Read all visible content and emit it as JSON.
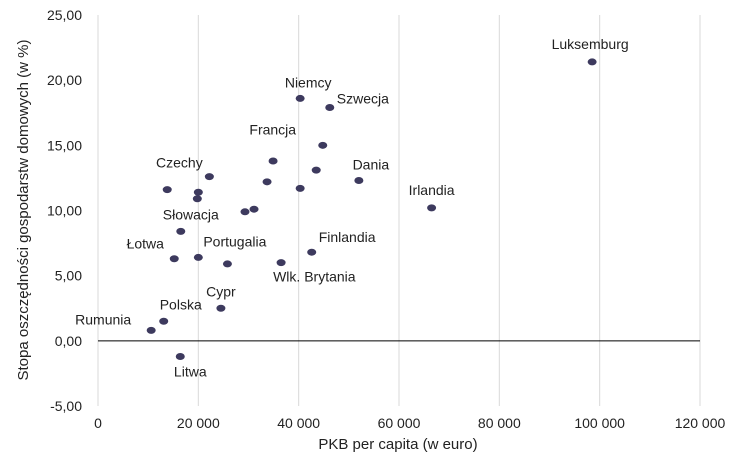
{
  "chart_data": {
    "type": "scatter",
    "title": "",
    "xlabel": "PKB per capita (w euro)",
    "ylabel": "Stopa oszczędności  gospodarstw domowych (w %)",
    "xlim": [
      0,
      120000
    ],
    "ylim": [
      -5,
      25
    ],
    "grid": "vertical",
    "legend": "none",
    "marker_color": "#3d3a5e",
    "x_ticks": [
      0,
      20000,
      40000,
      60000,
      80000,
      100000,
      120000
    ],
    "x_tick_labels": [
      "0",
      "20 000",
      "40 000",
      "60 000",
      "80 000",
      "100 000",
      "120 000"
    ],
    "y_ticks": [
      -5,
      0,
      5,
      10,
      15,
      20,
      25
    ],
    "y_tick_labels": [
      "-5,00",
      "0,00",
      "5,00",
      "10,00",
      "15,00",
      "20,00",
      "25,00"
    ],
    "points": [
      {
        "x": 98500,
        "y": 21.4,
        "label": "Luksemburg"
      },
      {
        "x": 40300,
        "y": 18.6,
        "label": "Niemcy"
      },
      {
        "x": 46200,
        "y": 17.9,
        "label": "Szwecja"
      },
      {
        "x": 44800,
        "y": 15.0,
        "label": "Francja"
      },
      {
        "x": 34900,
        "y": 13.8,
        "label": ""
      },
      {
        "x": 43500,
        "y": 13.1,
        "label": ""
      },
      {
        "x": 52000,
        "y": 12.3,
        "label": "Dania"
      },
      {
        "x": 33700,
        "y": 12.2,
        "label": ""
      },
      {
        "x": 40300,
        "y": 11.7,
        "label": ""
      },
      {
        "x": 66500,
        "y": 10.2,
        "label": "Irlandia"
      },
      {
        "x": 22200,
        "y": 12.6,
        "label": "Czechy"
      },
      {
        "x": 13800,
        "y": 11.6,
        "label": ""
      },
      {
        "x": 20000,
        "y": 11.4,
        "label": ""
      },
      {
        "x": 19800,
        "y": 10.9,
        "label": ""
      },
      {
        "x": 29300,
        "y": 9.9,
        "label": ""
      },
      {
        "x": 31100,
        "y": 10.1,
        "label": ""
      },
      {
        "x": 16500,
        "y": 8.4,
        "label": "Słowacja"
      },
      {
        "x": 42600,
        "y": 6.8,
        "label": "Finlandia"
      },
      {
        "x": 15200,
        "y": 6.3,
        "label": "Łotwa"
      },
      {
        "x": 20000,
        "y": 6.4,
        "label": "Portugalia"
      },
      {
        "x": 25800,
        "y": 5.9,
        "label": ""
      },
      {
        "x": 36500,
        "y": 6.0,
        "label": "Wlk. Brytania"
      },
      {
        "x": 24500,
        "y": 2.5,
        "label": "Cypr"
      },
      {
        "x": 13100,
        "y": 1.5,
        "label": "Polska"
      },
      {
        "x": 10600,
        "y": 0.8,
        "label": "Rumunia"
      },
      {
        "x": 16400,
        "y": -1.2,
        "label": "Litwa"
      }
    ]
  }
}
